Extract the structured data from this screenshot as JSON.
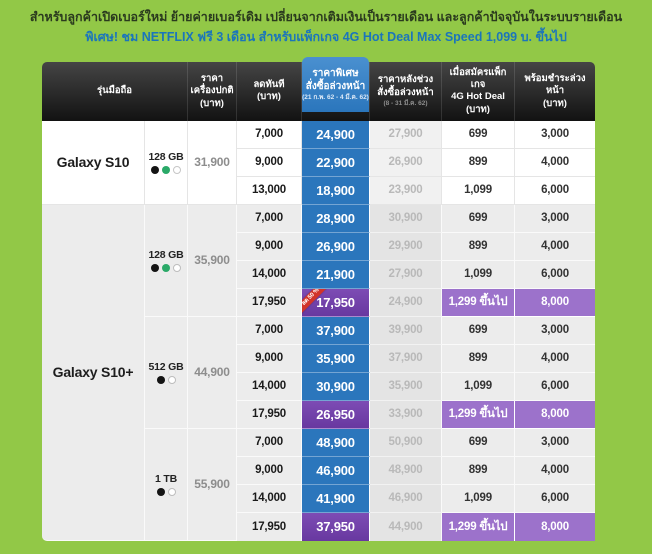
{
  "banner": {
    "line1": "สำหรับลูกค้าเปิดเบอร์ใหม่ ย้ายค่ายเบอร์เดิม เปลี่ยนจากเติมเงินเป็นรายเดือน และลูกค้าปัจจุบันในระบบรายเดือน",
    "line2": "พิเศษ! ชม NETFLIX ฟรี 3 เดือน สำหรับแพ็กเกจ 4G Hot Deal Max Speed 1,099 บ. ขึ้นไป"
  },
  "table": {
    "headers": {
      "model": "รุ่นมือถือ",
      "normal_price": "ราคาเครื่องปกติ\n(บาท)",
      "discount": "ลดทันที\n(บาท)",
      "special_price": "ราคาพิเศษ\nสั่งซื้อล่วงหน้า",
      "special_price_period": "(21 ก.พ. 62 - 4 มี.ค. 62)",
      "after_price": "ราคาหลังช่วง\nสั่งซื้อล่วงหน้า",
      "after_price_period": "(8 - 31 มี.ค. 62)",
      "package": "เมื่อสมัครแพ็กเกจ\n4G Hot Deal  (บาท)",
      "prepay": "พร้อมชำระล่วงหน้า\n(บาท)"
    },
    "groups": [
      {
        "model": "Galaxy S10",
        "variants": [
          {
            "storage": "128 GB",
            "dots": [
              "black",
              "green",
              "white"
            ],
            "normal_price": "31,900",
            "rows": [
              {
                "discount": "7,000",
                "special": "24,900",
                "after": "27,900",
                "package": "699",
                "prepay": "3,000"
              },
              {
                "discount": "9,000",
                "special": "22,900",
                "after": "26,900",
                "package": "899",
                "prepay": "4,000"
              },
              {
                "discount": "13,000",
                "special": "18,900",
                "after": "23,900",
                "package": "1,099",
                "prepay": "6,000"
              }
            ]
          }
        ]
      },
      {
        "model": "Galaxy S10+",
        "variants": [
          {
            "storage": "128 GB",
            "dots": [
              "black",
              "green",
              "white"
            ],
            "normal_price": "35,900",
            "rows": [
              {
                "discount": "7,000",
                "special": "28,900",
                "after": "30,900",
                "package": "699",
                "prepay": "3,000"
              },
              {
                "discount": "9,000",
                "special": "26,900",
                "after": "29,900",
                "package": "899",
                "prepay": "4,000"
              },
              {
                "discount": "14,000",
                "special": "21,900",
                "after": "27,900",
                "package": "1,099",
                "prepay": "6,000"
              },
              {
                "discount": "17,950",
                "special": "17,950",
                "after": "24,900",
                "package": "1,299 ขึ้นไป",
                "prepay": "8,000",
                "highlight": true,
                "badge": "ลด 50 %"
              }
            ]
          },
          {
            "storage": "512 GB",
            "dots": [
              "black",
              "white"
            ],
            "normal_price": "44,900",
            "rows": [
              {
                "discount": "7,000",
                "special": "37,900",
                "after": "39,900",
                "package": "699",
                "prepay": "3,000"
              },
              {
                "discount": "9,000",
                "special": "35,900",
                "after": "37,900",
                "package": "899",
                "prepay": "4,000"
              },
              {
                "discount": "14,000",
                "special": "30,900",
                "after": "35,900",
                "package": "1,099",
                "prepay": "6,000"
              },
              {
                "discount": "17,950",
                "special": "26,950",
                "after": "33,900",
                "package": "1,299 ขึ้นไป",
                "prepay": "8,000",
                "highlight": true
              }
            ]
          },
          {
            "storage": "1 TB",
            "dots": [
              "black",
              "white"
            ],
            "normal_price": "55,900",
            "rows": [
              {
                "discount": "7,000",
                "special": "48,900",
                "after": "50,900",
                "package": "699",
                "prepay": "3,000"
              },
              {
                "discount": "9,000",
                "special": "46,900",
                "after": "48,900",
                "package": "899",
                "prepay": "4,000"
              },
              {
                "discount": "14,000",
                "special": "41,900",
                "after": "46,900",
                "package": "1,099",
                "prepay": "6,000"
              },
              {
                "discount": "17,950",
                "special": "37,950",
                "after": "44,900",
                "package": "1,299 ขึ้นไป",
                "prepay": "8,000",
                "highlight": true
              }
            ]
          }
        ]
      }
    ]
  },
  "colors": {
    "page_background": "#92c847",
    "special_column_blue": "#2b76bc",
    "highlight_purple_dark": "#7040a5",
    "highlight_purple_light": "#9c72cb",
    "badge_red": "#d2342a",
    "header_dark": "#1c1c1c",
    "banner_link_blue": "#1b75bb",
    "dot_green": "#2aa968"
  }
}
